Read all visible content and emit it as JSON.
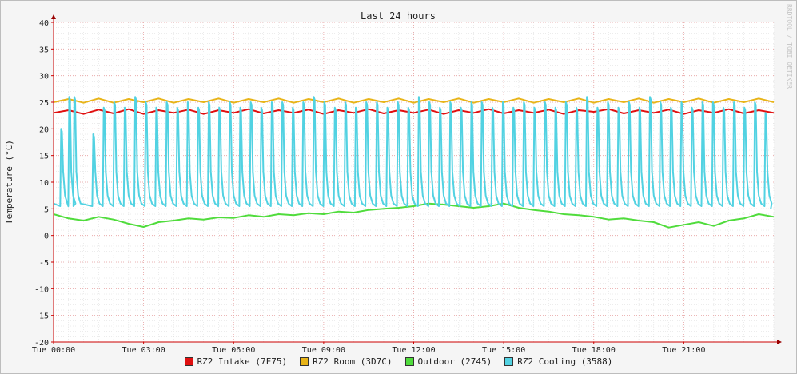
{
  "chart_data": {
    "type": "line",
    "title": "Last 24 hours",
    "ylabel": "Temperature (°C)",
    "watermark": "RRDTOOL / TOBI OETIKER",
    "ylim": [
      -20,
      40
    ],
    "yticks": [
      -20,
      -15,
      -10,
      -5,
      0,
      5,
      10,
      15,
      20,
      25,
      30,
      35,
      40
    ],
    "xlim": [
      0,
      24
    ],
    "xticks": [
      {
        "hour": 0,
        "label": "Tue 00:00"
      },
      {
        "hour": 3,
        "label": "Tue 03:00"
      },
      {
        "hour": 6,
        "label": "Tue 06:00"
      },
      {
        "hour": 9,
        "label": "Tue 09:00"
      },
      {
        "hour": 12,
        "label": "Tue 12:00"
      },
      {
        "hour": 15,
        "label": "Tue 15:00"
      },
      {
        "hour": 18,
        "label": "Tue 18:00"
      },
      {
        "hour": 21,
        "label": "Tue 21:00"
      }
    ],
    "grid": true,
    "legend_position": "bottom",
    "series": [
      {
        "name": "RZ2 Intake (7F75)",
        "color": "#e01010",
        "x": [
          0,
          0.5,
          1,
          1.5,
          2,
          2.5,
          3,
          3.5,
          4,
          4.5,
          5,
          5.5,
          6,
          6.5,
          7,
          7.5,
          8,
          8.5,
          9,
          9.5,
          10,
          10.5,
          11,
          11.5,
          12,
          12.5,
          13,
          13.5,
          14,
          14.5,
          15,
          15.5,
          16,
          16.5,
          17,
          17.5,
          18,
          18.5,
          19,
          19.5,
          20,
          20.5,
          21,
          21.5,
          22,
          22.5,
          23,
          23.5,
          24
        ],
        "y": [
          23.0,
          23.5,
          22.8,
          23.6,
          22.9,
          23.7,
          22.8,
          23.5,
          23.0,
          23.6,
          22.8,
          23.5,
          23.0,
          23.7,
          22.9,
          23.5,
          23.0,
          23.6,
          22.8,
          23.5,
          23.0,
          23.7,
          22.9,
          23.5,
          23.0,
          23.6,
          22.8,
          23.5,
          23.0,
          23.7,
          22.9,
          23.5,
          23.0,
          23.6,
          22.8,
          23.5,
          23.2,
          23.7,
          22.9,
          23.5,
          23.0,
          23.6,
          22.8,
          23.5,
          23.0,
          23.7,
          22.9,
          23.5,
          23.0
        ]
      },
      {
        "name": "RZ2 Room (3D7C)",
        "color": "#e8b418",
        "x": [
          0,
          0.5,
          1,
          1.5,
          2,
          2.5,
          3,
          3.5,
          4,
          4.5,
          5,
          5.5,
          6,
          6.5,
          7,
          7.5,
          8,
          8.5,
          9,
          9.5,
          10,
          10.5,
          11,
          11.5,
          12,
          12.5,
          13,
          13.5,
          14,
          14.5,
          15,
          15.5,
          16,
          16.5,
          17,
          17.5,
          18,
          18.5,
          19,
          19.5,
          20,
          20.5,
          21,
          21.5,
          22,
          22.5,
          23,
          23.5,
          24
        ],
        "y": [
          25.0,
          25.6,
          24.9,
          25.7,
          24.9,
          25.6,
          25.0,
          25.7,
          24.9,
          25.6,
          25.0,
          25.7,
          24.9,
          25.6,
          25.0,
          25.7,
          24.9,
          25.6,
          25.0,
          25.7,
          24.9,
          25.6,
          25.0,
          25.7,
          24.9,
          25.6,
          25.0,
          25.7,
          24.9,
          25.6,
          25.0,
          25.7,
          24.9,
          25.6,
          25.0,
          25.7,
          24.9,
          25.6,
          25.0,
          25.7,
          24.9,
          25.6,
          25.0,
          25.7,
          24.9,
          25.6,
          25.0,
          25.7,
          25.0
        ]
      },
      {
        "name": "Outdoor (2745)",
        "color": "#50dc3c",
        "x": [
          0,
          0.5,
          1,
          1.5,
          2,
          2.5,
          3,
          3.5,
          4,
          4.5,
          5,
          5.5,
          6,
          6.5,
          7,
          7.5,
          8,
          8.5,
          9,
          9.5,
          10,
          10.5,
          11,
          11.5,
          12,
          12.5,
          13,
          13.5,
          14,
          14.5,
          15,
          15.5,
          16,
          16.5,
          17,
          17.5,
          18,
          18.5,
          19,
          19.5,
          20,
          20.5,
          21,
          21.5,
          22,
          22.5,
          23,
          23.5,
          24
        ],
        "y": [
          4.0,
          3.2,
          2.8,
          3.5,
          3.0,
          2.2,
          1.6,
          2.5,
          2.8,
          3.2,
          3.0,
          3.4,
          3.3,
          3.8,
          3.5,
          4.0,
          3.8,
          4.2,
          4.0,
          4.5,
          4.3,
          4.8,
          5.0,
          5.2,
          5.5,
          6.0,
          5.8,
          5.5,
          5.2,
          5.5,
          6.0,
          5.2,
          4.8,
          4.5,
          4.0,
          3.8,
          3.5,
          3.0,
          3.2,
          2.8,
          2.5,
          1.5,
          2.0,
          2.5,
          1.8,
          2.8,
          3.2,
          4.0,
          3.5
        ]
      },
      {
        "name": "RZ2 Cooling (3588)",
        "color": "#52d2e2",
        "base": 5,
        "peaks_hours": [
          0.28,
          0.55,
          0.72,
          1.35,
          1.7,
          2.05,
          2.4,
          2.75,
          3.1,
          3.45,
          3.8,
          4.15,
          4.5,
          4.85,
          5.2,
          5.55,
          5.9,
          6.25,
          6.6,
          6.95,
          7.3,
          7.65,
          8.0,
          8.35,
          8.7,
          9.05,
          9.4,
          9.75,
          10.1,
          10.45,
          10.8,
          11.15,
          11.5,
          11.85,
          12.2,
          12.55,
          12.9,
          13.25,
          13.6,
          13.95,
          14.3,
          14.65,
          15.0,
          15.35,
          15.7,
          16.05,
          16.4,
          16.75,
          17.1,
          17.45,
          17.8,
          18.15,
          18.5,
          18.85,
          19.2,
          19.55,
          19.9,
          20.25,
          20.6,
          20.95,
          21.3,
          21.65,
          22.0,
          22.35,
          22.7,
          23.05,
          23.4,
          23.75
        ],
        "peaks_values": [
          20,
          26,
          26,
          19,
          24,
          25,
          24,
          26,
          25,
          24,
          25,
          24,
          25,
          24,
          25,
          24,
          25,
          24,
          25,
          24,
          25,
          25,
          24,
          25,
          26,
          25,
          24,
          25,
          24,
          25,
          25,
          24,
          25,
          24,
          26,
          25,
          24,
          25,
          24,
          25,
          25,
          24,
          25,
          24,
          25,
          24,
          25,
          24,
          25,
          24,
          26,
          24,
          25,
          24,
          25,
          24,
          26,
          25,
          24,
          25,
          24,
          25,
          25,
          24,
          25,
          24,
          25,
          23
        ]
      }
    ]
  }
}
